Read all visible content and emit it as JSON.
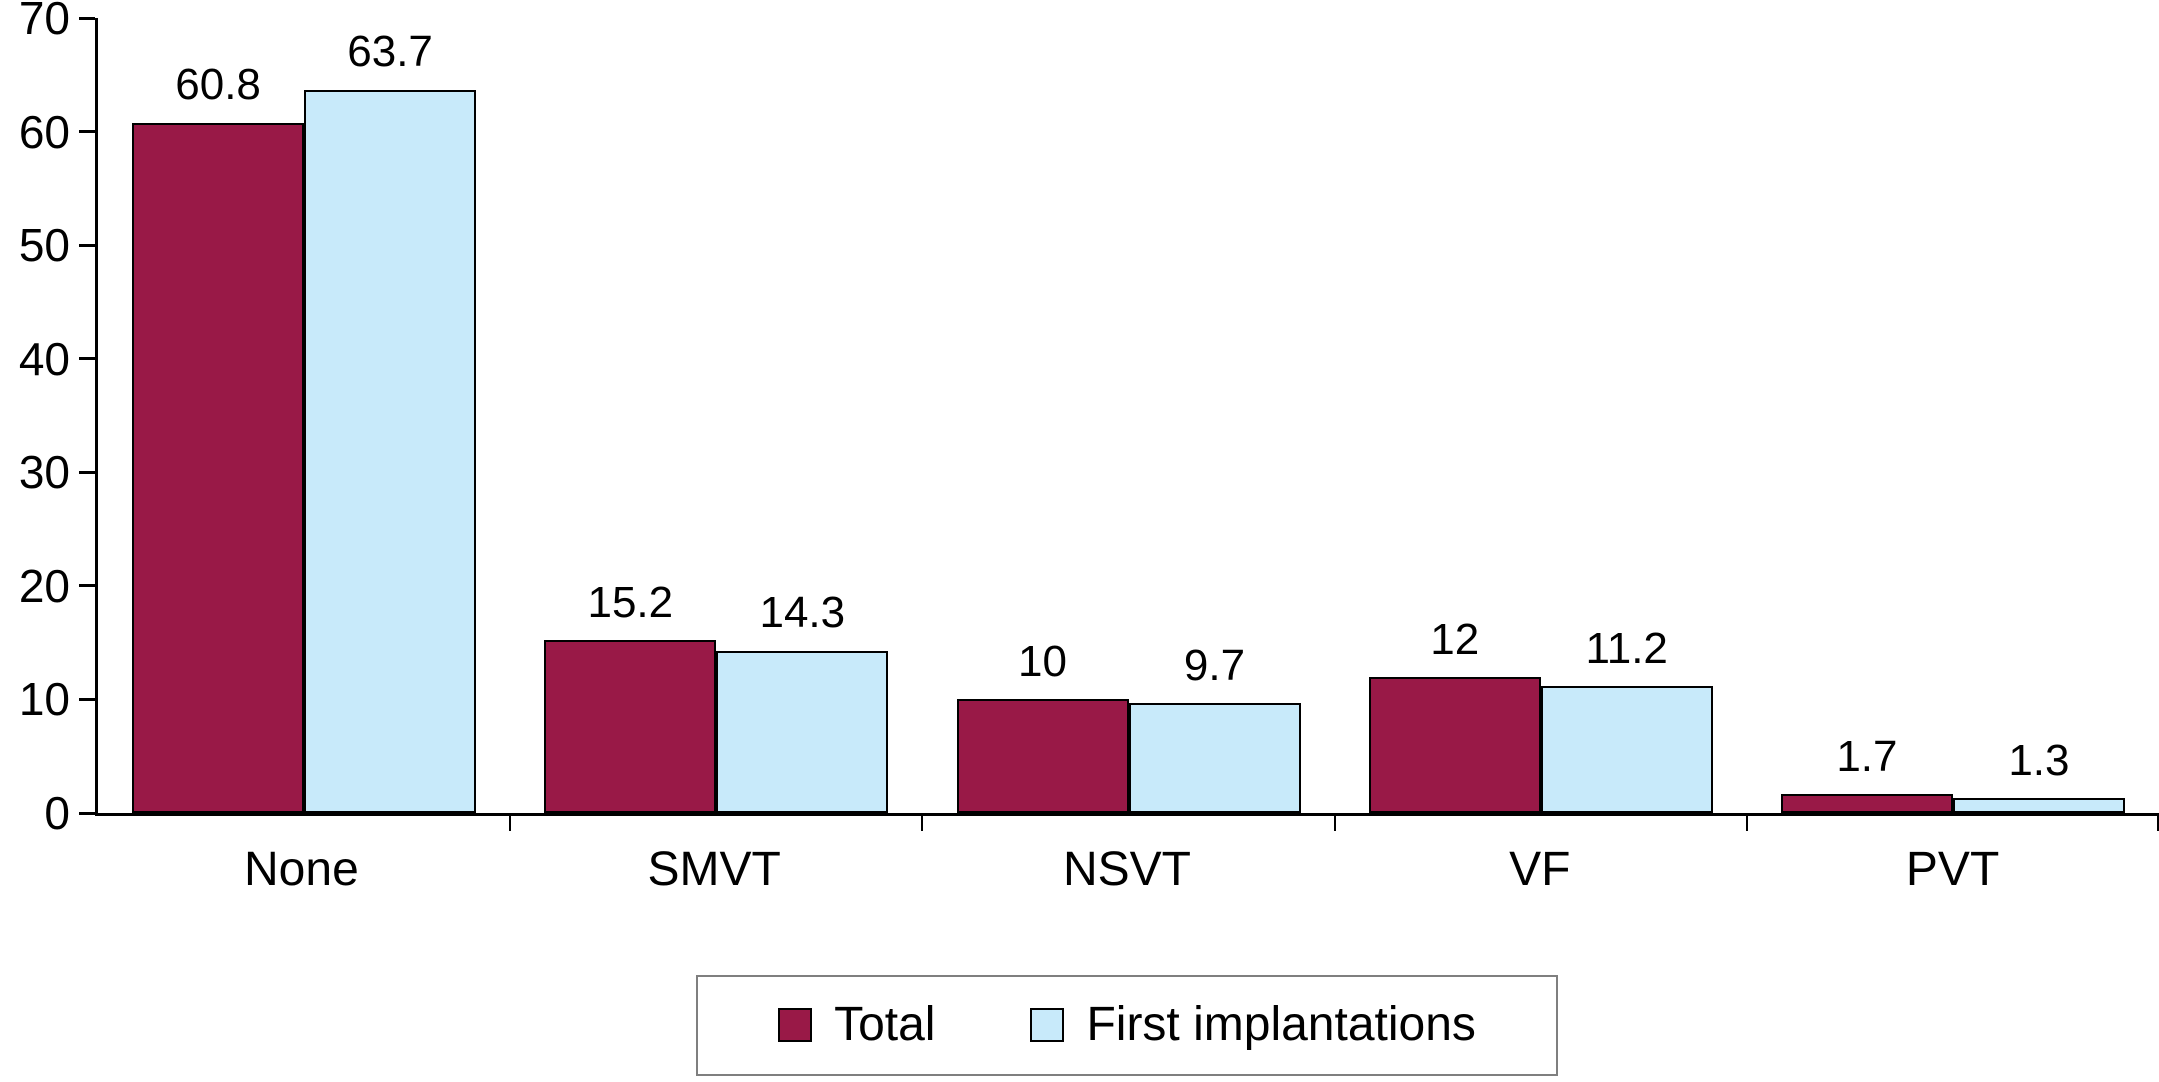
{
  "chart_data": {
    "type": "bar",
    "categories": [
      "None",
      "SMVT",
      "NSVT",
      "VF",
      "PVT"
    ],
    "series": [
      {
        "name": "Total",
        "color": "#991947",
        "values": [
          60.8,
          15.2,
          10,
          12,
          1.7
        ]
      },
      {
        "name": "First implantations",
        "color": "#C8EAFA",
        "values": [
          63.7,
          14.3,
          9.7,
          11.2,
          1.3
        ]
      }
    ],
    "ylim": [
      0,
      70
    ],
    "yticks": [
      0,
      10,
      20,
      30,
      40,
      50,
      60,
      70
    ],
    "grid": false,
    "legend_position": "bottom",
    "axis_color": "#000000",
    "bar_border_color": "#000000"
  }
}
